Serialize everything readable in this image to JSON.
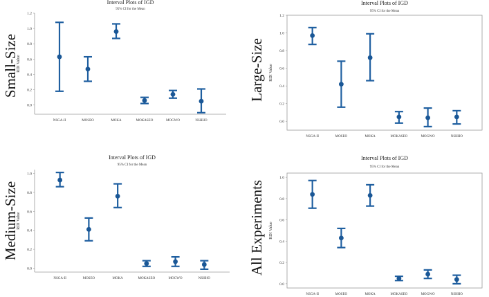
{
  "chart_data": [
    {
      "type": "interval",
      "side_label": "Small-Size",
      "title": "Interval Plots of IGD",
      "subtitle": "95% CI for the Mean",
      "ylabel": "RDI Value",
      "xlabel": "",
      "categories": [
        "NSGA-II",
        "MOSEO",
        "MOKA",
        "MOKASEO",
        "MOGWO",
        "NSHHO"
      ],
      "means": [
        0.63,
        0.47,
        0.96,
        0.06,
        0.14,
        0.05
      ],
      "lower": [
        0.18,
        0.31,
        0.87,
        0.02,
        0.09,
        -0.1
      ],
      "upper": [
        1.08,
        0.63,
        1.06,
        0.1,
        0.19,
        0.21
      ],
      "ylim": [
        -0.12,
        1.2
      ],
      "yticks": [
        "0.0",
        "0.2",
        "0.4",
        "0.6",
        "0.8",
        "1.0",
        "1.2"
      ]
    },
    {
      "type": "interval",
      "side_label": "Large-Size",
      "title": "Interval Plots of IGD",
      "subtitle": "95% CI for the Mean",
      "ylabel": "RDI Value",
      "xlabel": "",
      "categories": [
        "NSGA-II",
        "MOSEO",
        "MOKA",
        "MOKASEO",
        "MOGWO",
        "NSHHO"
      ],
      "means": [
        0.97,
        0.42,
        0.72,
        0.05,
        0.04,
        0.05
      ],
      "lower": [
        0.87,
        0.16,
        0.46,
        -0.02,
        -0.06,
        -0.03
      ],
      "upper": [
        1.06,
        0.68,
        0.99,
        0.11,
        0.15,
        0.12
      ],
      "ylim": [
        -0.1,
        1.2
      ],
      "yticks": [
        "0.0",
        "0.2",
        "0.4",
        "0.6",
        "0.8",
        "1.0",
        "1.2"
      ]
    },
    {
      "type": "interval",
      "side_label": "Medium-Size",
      "title": "Interval Plots of IGD",
      "subtitle": "95% CI for the Mean",
      "ylabel": "RDI Value",
      "xlabel": "",
      "categories": [
        "NSGA-II",
        "MOSEO",
        "MOKA",
        "MOKASEO",
        "MOGWO",
        "NSHHO"
      ],
      "means": [
        0.93,
        0.41,
        0.76,
        0.05,
        0.07,
        0.04
      ],
      "lower": [
        0.86,
        0.29,
        0.64,
        0.02,
        0.02,
        -0.01
      ],
      "upper": [
        1.01,
        0.53,
        0.89,
        0.08,
        0.12,
        0.08
      ],
      "ylim": [
        -0.04,
        1.04
      ],
      "yticks": [
        "0.0",
        "0.2",
        "0.4",
        "0.6",
        "0.8",
        "1.0"
      ]
    },
    {
      "type": "interval",
      "side_label": "All Experiments",
      "title": "Interval Plots of IGD",
      "subtitle": "95% CI for the Mean",
      "ylabel": "RDI Value",
      "xlabel": "",
      "categories": [
        "NSGA-II",
        "MOSEO",
        "MOKA",
        "MOKASEO",
        "MOGWO",
        "NSHHO"
      ],
      "means": [
        0.84,
        0.43,
        0.83,
        0.05,
        0.09,
        0.04
      ],
      "lower": [
        0.71,
        0.34,
        0.73,
        0.03,
        0.05,
        0.0
      ],
      "upper": [
        0.97,
        0.52,
        0.93,
        0.07,
        0.13,
        0.08
      ],
      "ylim": [
        -0.04,
        1.04
      ],
      "yticks": [
        "0.0",
        "0.2",
        "0.4",
        "0.6",
        "0.8",
        "1.0"
      ]
    }
  ],
  "colors": {
    "marker": "#1f5fa0",
    "point": "#1a5796",
    "frame": "#9a9a9a"
  }
}
